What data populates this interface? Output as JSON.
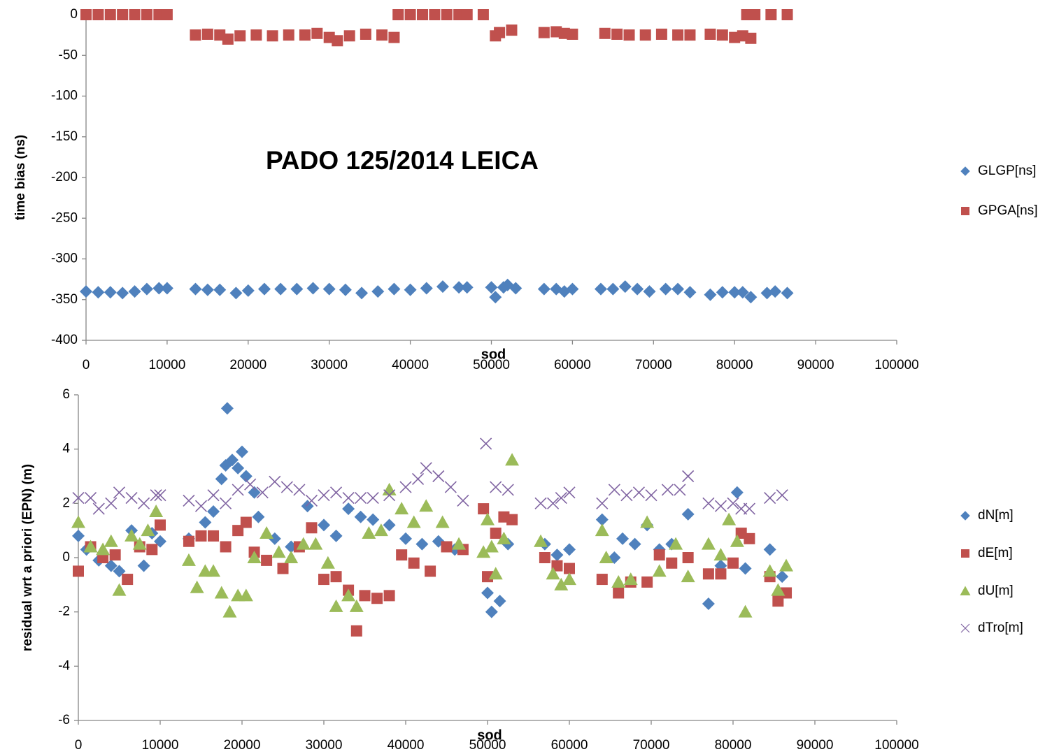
{
  "chart_data": [
    {
      "type": "scatter",
      "title": "PADO 125/2014 LEICA",
      "xlabel": "sod",
      "ylabel": "time bias (ns)",
      "xlim": [
        0,
        100000
      ],
      "xticks": [
        0,
        10000,
        20000,
        30000,
        40000,
        50000,
        60000,
        70000,
        80000,
        90000,
        100000
      ],
      "ylim": [
        -400,
        0
      ],
      "yticks": [
        0,
        -50,
        -100,
        -150,
        -200,
        -250,
        -300,
        -350,
        -400
      ],
      "grid": false,
      "legend": "right",
      "series": [
        {
          "name": "GLGP[ns]",
          "color": "#4f81bd",
          "marker": "diamond",
          "x": [
            0,
            1500,
            3000,
            4500,
            6000,
            7500,
            9000,
            10000,
            13500,
            15000,
            16500,
            18500,
            20000,
            22000,
            24000,
            26000,
            28000,
            30000,
            32000,
            34000,
            36000,
            38000,
            40000,
            42000,
            44000,
            46000,
            47000,
            50000,
            50500,
            51500,
            52000,
            53000,
            56500,
            58000,
            59000,
            60000,
            63500,
            65000,
            66500,
            68000,
            69500,
            71500,
            73000,
            74500,
            77000,
            78500,
            80000,
            81000,
            82000,
            84000,
            85000,
            86500
          ],
          "values": [
            -340,
            -341,
            -341,
            -342,
            -340,
            -337,
            -336,
            -336,
            -337,
            -338,
            -338,
            -342,
            -339,
            -337,
            -337,
            -337,
            -336,
            -337,
            -338,
            -342,
            -340,
            -337,
            -338,
            -336,
            -334,
            -335,
            -335,
            -335,
            -347,
            -335,
            -332,
            -336,
            -337,
            -337,
            -340,
            -337,
            -337,
            -337,
            -334,
            -337,
            -340,
            -337,
            -337,
            -341,
            -344,
            -341,
            -341,
            -341,
            -347,
            -342,
            -340,
            -342
          ]
        },
        {
          "name": "GPGA[ns]",
          "color": "#c0504d",
          "marker": "square",
          "x": [
            0,
            1500,
            3000,
            4500,
            6000,
            7500,
            9000,
            10000,
            13500,
            15000,
            16500,
            17500,
            19000,
            21000,
            23000,
            25000,
            27000,
            28500,
            30000,
            31000,
            32500,
            34500,
            36500,
            38000,
            38500,
            40000,
            41500,
            43000,
            44500,
            46000,
            47000,
            49000,
            50500,
            51000,
            52500,
            56500,
            58000,
            59000,
            60000,
            64000,
            65500,
            67000,
            69000,
            71000,
            73000,
            74500,
            77000,
            78500,
            80000,
            81000,
            82000,
            81500,
            82500,
            84500,
            86500
          ],
          "values": [
            0,
            0,
            0,
            0,
            0,
            0,
            0,
            0,
            -25,
            -24,
            -25,
            -30,
            -26,
            -25,
            -26,
            -25,
            -25,
            -23,
            -28,
            -32,
            -26,
            -24,
            -25,
            -28,
            0,
            0,
            0,
            0,
            0,
            0,
            0,
            0,
            -26,
            -22,
            -19,
            -22,
            -21,
            -23,
            -24,
            -23,
            -24,
            -25,
            -25,
            -24,
            -25,
            -25,
            -24,
            -25,
            -28,
            -26,
            -29,
            0,
            0,
            0,
            0
          ]
        }
      ]
    },
    {
      "type": "scatter",
      "xlabel": "sod",
      "ylabel": "residual wrt a priori (EPN) (m)",
      "xlim": [
        0,
        100000
      ],
      "xticks": [
        0,
        10000,
        20000,
        30000,
        40000,
        50000,
        60000,
        70000,
        80000,
        90000,
        100000
      ],
      "ylim": [
        -6,
        6
      ],
      "yticks": [
        6,
        4,
        2,
        0,
        -2,
        -4,
        -6
      ],
      "grid": false,
      "legend": "right",
      "series": [
        {
          "name": "dN[m]",
          "color": "#4f81bd",
          "marker": "diamond",
          "x": [
            0,
            1000,
            2500,
            4000,
            5000,
            6500,
            8000,
            9000,
            10000,
            13500,
            15500,
            16500,
            17500,
            18000,
            18200,
            18800,
            19500,
            20000,
            20500,
            21500,
            22000,
            24000,
            26000,
            28000,
            30000,
            31500,
            33000,
            34500,
            36000,
            38000,
            40000,
            42000,
            44000,
            46000,
            50000,
            50500,
            51500,
            52500,
            57000,
            58500,
            60000,
            64000,
            65500,
            66500,
            68000,
            69500,
            71000,
            72500,
            74500,
            77000,
            78500,
            80500,
            81500,
            84500,
            86000
          ],
          "values": [
            0.8,
            0.3,
            -0.1,
            -0.3,
            -0.5,
            1.0,
            -0.3,
            0.9,
            0.6,
            0.7,
            1.3,
            1.7,
            2.9,
            3.4,
            5.5,
            3.6,
            3.3,
            3.9,
            3.0,
            2.4,
            1.5,
            0.7,
            0.4,
            1.9,
            1.2,
            0.8,
            1.8,
            1.5,
            1.4,
            1.2,
            0.7,
            0.5,
            0.6,
            0.3,
            -1.3,
            -2.0,
            -1.6,
            0.5,
            0.5,
            0.1,
            0.3,
            1.4,
            0.0,
            0.7,
            0.5,
            1.2,
            0.3,
            0.5,
            1.6,
            -1.7,
            -0.3,
            2.4,
            -0.4,
            0.3,
            -0.7
          ]
        },
        {
          "name": "dE[m]",
          "color": "#c0504d",
          "marker": "square",
          "x": [
            0,
            1500,
            3000,
            4500,
            6000,
            7500,
            9000,
            10000,
            13500,
            15000,
            16500,
            18000,
            19500,
            20500,
            21500,
            23000,
            25000,
            27000,
            28500,
            30000,
            31500,
            33000,
            34000,
            35000,
            36500,
            38000,
            39500,
            41000,
            43000,
            45000,
            47000,
            49500,
            50000,
            51000,
            52000,
            53000,
            57000,
            58500,
            60000,
            64000,
            66000,
            67500,
            69500,
            71000,
            72500,
            74500,
            77000,
            78500,
            80000,
            81000,
            82000,
            84500,
            85500,
            86500
          ],
          "values": [
            -0.5,
            0.4,
            0.0,
            0.1,
            -0.8,
            0.4,
            0.3,
            1.2,
            0.6,
            0.8,
            0.8,
            0.4,
            1.0,
            1.3,
            0.2,
            -0.1,
            -0.4,
            0.4,
            1.1,
            -0.8,
            -0.7,
            -1.2,
            -2.7,
            -1.4,
            -1.5,
            -1.4,
            0.1,
            -0.2,
            -0.5,
            0.4,
            0.3,
            1.8,
            -0.7,
            0.9,
            1.5,
            1.4,
            0.0,
            -0.3,
            -0.4,
            -0.8,
            -1.3,
            -0.9,
            -0.9,
            0.1,
            -0.2,
            0.0,
            -0.6,
            -0.6,
            -0.2,
            0.9,
            0.7,
            -0.7,
            -1.6,
            -1.3
          ]
        },
        {
          "name": "dU[m]",
          "color": "#9bbb59",
          "marker": "triangle",
          "x": [
            0,
            1500,
            3000,
            4000,
            5000,
            6500,
            7500,
            8500,
            9500,
            13500,
            14500,
            15500,
            16500,
            17500,
            18500,
            19500,
            20500,
            21500,
            23000,
            24500,
            26000,
            27500,
            29000,
            30500,
            31500,
            33000,
            34000,
            35500,
            37000,
            38000,
            39500,
            41000,
            42500,
            44500,
            46500,
            49500,
            50000,
            50500,
            51000,
            52000,
            53000,
            56500,
            58000,
            59000,
            60000,
            64000,
            64500,
            66000,
            67500,
            69500,
            71000,
            73000,
            74500,
            77000,
            78500,
            79500,
            80500,
            81500,
            84500,
            85500,
            86500
          ],
          "values": [
            1.3,
            0.4,
            0.3,
            0.6,
            -1.2,
            0.8,
            0.5,
            1.0,
            1.7,
            -0.1,
            -1.1,
            -0.5,
            -0.5,
            -1.3,
            -2.0,
            -1.4,
            -1.4,
            0.0,
            0.9,
            0.2,
            0.0,
            0.5,
            0.5,
            -0.2,
            -1.8,
            -1.4,
            -1.8,
            0.9,
            1.0,
            2.5,
            1.8,
            1.3,
            1.9,
            1.3,
            0.5,
            0.2,
            1.4,
            0.4,
            -0.6,
            0.7,
            3.6,
            0.6,
            -0.6,
            -1.0,
            -0.8,
            1.0,
            0.0,
            -0.9,
            -0.8,
            1.3,
            -0.5,
            0.5,
            -0.7,
            0.5,
            0.1,
            1.4,
            0.6,
            -2.0,
            -0.5,
            -1.2,
            -0.3
          ]
        },
        {
          "name": "dTro[m]",
          "color": "#8064a2",
          "marker": "x",
          "x": [
            0,
            1500,
            2500,
            4000,
            5000,
            6500,
            8000,
            9500,
            10000,
            13500,
            15000,
            16500,
            18000,
            19500,
            21000,
            22500,
            24000,
            25500,
            27000,
            28500,
            30000,
            31500,
            33000,
            34500,
            36000,
            38000,
            40000,
            41500,
            42500,
            44000,
            45500,
            47000,
            49800,
            51000,
            52500,
            56500,
            58000,
            59000,
            60000,
            64000,
            65500,
            67000,
            68500,
            70000,
            72000,
            73500,
            74500,
            77000,
            78500,
            80000,
            81000,
            82000,
            84500,
            86000
          ],
          "values": [
            2.2,
            2.2,
            1.8,
            2.0,
            2.4,
            2.2,
            2.0,
            2.3,
            2.3,
            2.1,
            1.9,
            2.3,
            2.0,
            2.5,
            2.7,
            2.4,
            2.8,
            2.6,
            2.5,
            2.1,
            2.3,
            2.4,
            2.2,
            2.2,
            2.2,
            2.3,
            2.6,
            2.9,
            3.3,
            3.0,
            2.6,
            2.1,
            4.2,
            2.6,
            2.5,
            2.0,
            2.0,
            2.2,
            2.4,
            2.0,
            2.5,
            2.3,
            2.4,
            2.3,
            2.5,
            2.5,
            3.0,
            2.0,
            1.9,
            2.0,
            1.8,
            1.8,
            2.2,
            2.3
          ]
        }
      ]
    }
  ]
}
